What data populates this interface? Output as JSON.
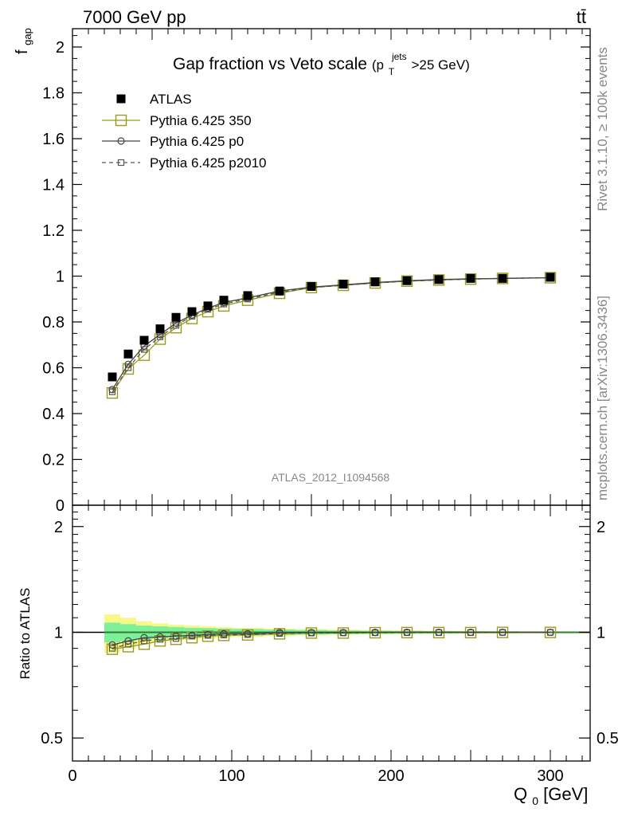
{
  "header": {
    "left": "7000 GeV pp",
    "right": "tt̄"
  },
  "side_labels": {
    "rivet": "Rivet 3.1.10, ≥ 100k events",
    "mcplots": "mcplots.cern.ch [arXiv:1306.3436]"
  },
  "watermark": "ATLAS_2012_I1094568",
  "colors": {
    "atlas": "#000000",
    "p350": "#9a9a22",
    "p0": "#444444",
    "p2010": "#555555",
    "band_inner": "#7ff09a",
    "band_outer": "#f8f888",
    "ratio_line": "#2e7d32"
  },
  "chart_data": [
    {
      "type": "scatter",
      "panel": "main",
      "title": "Gap fraction vs Veto scale",
      "title_suffix": {
        "open": "(p",
        "sub": "T",
        "sup": "jets",
        "rest": ">25 GeV)"
      },
      "ylabel": "f",
      "ylabel_sub": "gap",
      "xlim": [
        0,
        325
      ],
      "ylim": [
        0,
        2.08
      ],
      "y_ticks": [
        "0",
        "0.2",
        "0.4",
        "0.6",
        "0.8",
        "1",
        "1.2",
        "1.4",
        "1.6",
        "1.8",
        "2"
      ],
      "legend": [
        "ATLAS",
        "Pythia 6.425 350",
        "Pythia 6.425 p0",
        "Pythia 6.425 p2010"
      ],
      "legend_position": "top-left",
      "x": [
        25,
        35,
        45,
        55,
        65,
        75,
        85,
        95,
        110,
        130,
        150,
        170,
        190,
        210,
        230,
        250,
        270,
        300
      ],
      "series": [
        {
          "name": "ATLAS",
          "marker": "filled-square",
          "values": [
            0.56,
            0.66,
            0.72,
            0.77,
            0.82,
            0.845,
            0.87,
            0.895,
            0.915,
            0.935,
            0.955,
            0.965,
            0.975,
            0.98,
            0.985,
            0.99,
            0.99,
            0.995
          ]
        },
        {
          "name": "Pythia 6.425 350",
          "marker": "open-square",
          "line": "solid",
          "values": [
            0.49,
            0.595,
            0.655,
            0.725,
            0.775,
            0.815,
            0.845,
            0.87,
            0.895,
            0.925,
            0.95,
            0.96,
            0.97,
            0.978,
            0.983,
            0.987,
            0.99,
            0.993
          ]
        },
        {
          "name": "Pythia 6.425 p0",
          "marker": "open-circle",
          "line": "solid",
          "values": [
            0.505,
            0.615,
            0.695,
            0.745,
            0.795,
            0.83,
            0.86,
            0.885,
            0.905,
            0.935,
            0.952,
            0.962,
            0.972,
            0.98,
            0.985,
            0.988,
            0.99,
            0.993
          ]
        },
        {
          "name": "Pythia 6.425 p2010",
          "marker": "open-square-small",
          "line": "dashed",
          "values": [
            0.495,
            0.6,
            0.68,
            0.735,
            0.785,
            0.825,
            0.855,
            0.878,
            0.9,
            0.93,
            0.95,
            0.96,
            0.97,
            0.978,
            0.983,
            0.987,
            0.99,
            0.993
          ]
        }
      ]
    },
    {
      "type": "scatter",
      "panel": "ratio",
      "ylabel": "Ratio to ATLAS",
      "xlabel": "Q",
      "xlabel_sub": "0",
      "xlabel_unit": "[GeV]",
      "xlim": [
        0,
        325
      ],
      "ylim": [
        0.43,
        2.3
      ],
      "y_scale": "log",
      "x_ticks": [
        "0",
        "100",
        "200",
        "300"
      ],
      "y_ticks": [
        "0.5",
        "1",
        "2"
      ],
      "x": [
        25,
        35,
        45,
        55,
        65,
        75,
        85,
        95,
        110,
        130,
        150,
        170,
        190,
        210,
        230,
        250,
        270,
        300
      ],
      "band": {
        "edges": [
          20,
          30,
          40,
          50,
          60,
          70,
          80,
          90,
          100,
          120,
          140,
          160,
          180,
          200,
          220,
          240,
          260,
          280,
          325
        ],
        "inner": [
          0.065,
          0.055,
          0.045,
          0.04,
          0.035,
          0.03,
          0.028,
          0.025,
          0.022,
          0.018,
          0.015,
          0.012,
          0.01,
          0.009,
          0.008,
          0.007,
          0.006,
          0.005
        ],
        "outer": [
          0.125,
          0.1,
          0.075,
          0.06,
          0.05,
          0.045,
          0.04,
          0.035,
          0.03,
          0.025,
          0.02,
          0.017,
          0.014,
          0.012,
          0.01,
          0.009,
          0.008,
          0.006
        ]
      },
      "series": [
        {
          "name": "Pythia 6.425 350",
          "values": [
            0.895,
            0.91,
            0.925,
            0.945,
            0.955,
            0.965,
            0.975,
            0.98,
            0.983,
            0.99,
            0.995,
            0.995,
            0.997,
            0.998,
            0.998,
            0.998,
            0.999,
            0.999
          ]
        },
        {
          "name": "Pythia 6.425 p0",
          "values": [
            0.92,
            0.945,
            0.965,
            0.97,
            0.975,
            0.98,
            0.985,
            0.99,
            0.99,
            0.998,
            0.998,
            0.998,
            0.999,
            1.0,
            1.0,
            1.0,
            1.0,
            1.0
          ]
        },
        {
          "name": "Pythia 6.425 p2010",
          "values": [
            0.9,
            0.925,
            0.945,
            0.955,
            0.96,
            0.975,
            0.98,
            0.982,
            0.985,
            0.992,
            0.995,
            0.996,
            0.997,
            0.998,
            0.998,
            0.998,
            0.999,
            0.999
          ]
        }
      ]
    }
  ]
}
